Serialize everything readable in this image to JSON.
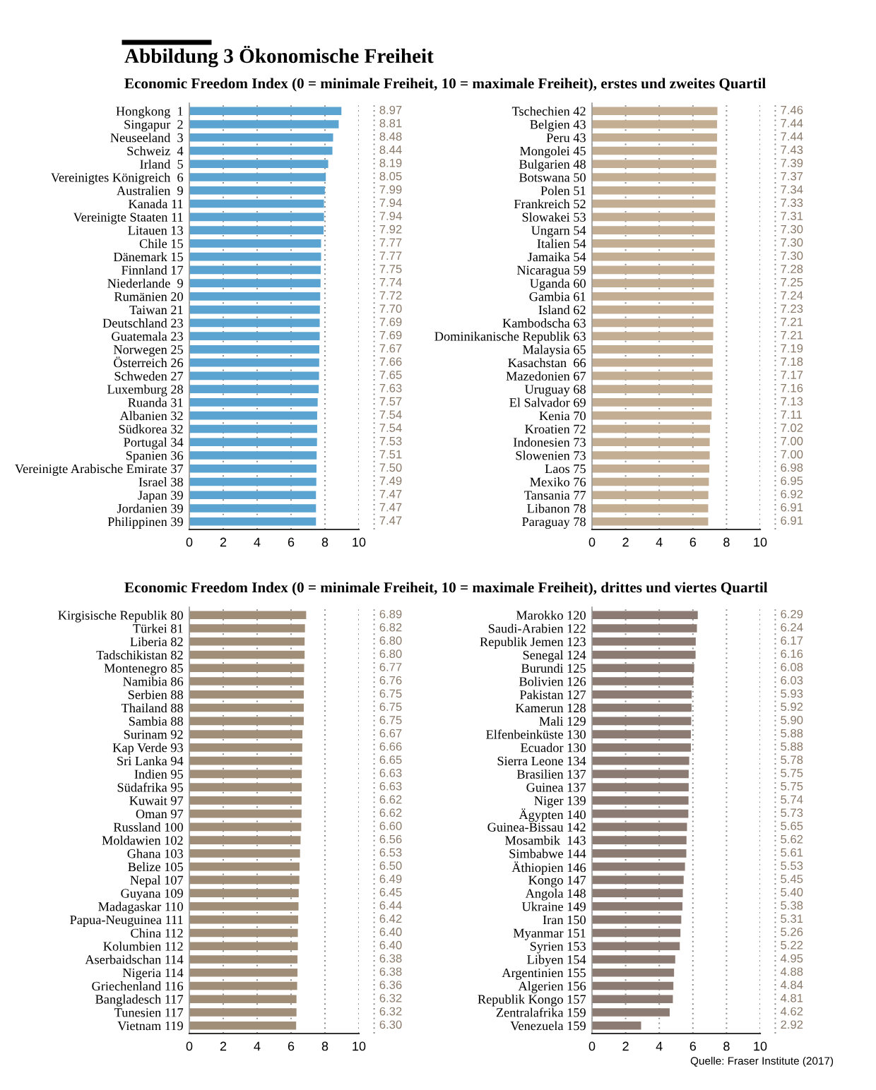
{
  "chart_data": [
    {
      "type": "bar",
      "orientation": "horizontal",
      "title": "Abbildung 3 Ökonomische Freiheit",
      "subtitle": "Economic Freedom Index (0 = minimale Freiheit, 10 = maximale Freiheit), erstes und zweites Quartil",
      "color": "#5ba3d0",
      "xlim": [
        0,
        10
      ],
      "xticks": [
        0,
        2,
        4,
        6,
        8,
        10
      ],
      "grid": "x",
      "legend": false,
      "categories": [
        "Hongkong  1",
        "Singapur  2",
        "Neuseeland  3",
        "Schweiz  4",
        "Irland  5",
        "Vereinigtes Königreich  6",
        "Australien  9",
        "Kanada 11",
        "Vereinigte Staaten 11",
        "Litauen 13",
        "Chile 15",
        "Dänemark 15",
        "Finnland 17",
        "Niederlande  9",
        "Rumänien 20",
        "Taiwan 21",
        "Deutschland 23",
        "Guatemala 23",
        "Norwegen 25",
        "Österreich 26",
        "Schweden 27",
        "Luxemburg 28",
        "Ruanda 31",
        "Albanien 32",
        "Südkorea 32",
        "Portugal 34",
        "Spanien 36",
        "Vereinigte Arabische Emirate 37",
        "Israel 38",
        "Japan 39",
        "Jordanien 39",
        "Philippinen 39"
      ],
      "values": [
        8.97,
        8.81,
        8.48,
        8.44,
        8.19,
        8.05,
        7.99,
        7.94,
        7.94,
        7.92,
        7.77,
        7.77,
        7.75,
        7.74,
        7.72,
        7.7,
        7.69,
        7.69,
        7.67,
        7.66,
        7.65,
        7.63,
        7.57,
        7.54,
        7.54,
        7.53,
        7.51,
        7.5,
        7.49,
        7.47,
        7.47,
        7.47
      ],
      "value_labels": [
        "8.97",
        "8.81",
        "8.48",
        "8.44",
        "8.19",
        "8.05",
        "7.99",
        "7.94",
        "7.94",
        "7.92",
        "7.77",
        "7.77",
        "7.75",
        "7.74",
        "7.72",
        "7.70",
        "7.69",
        "7.69",
        "7.67",
        "7.66",
        "7.65",
        "7.63",
        "7.57",
        "7.54",
        "7.54",
        "7.53",
        "7.51",
        "7.50",
        "7.49",
        "7.47",
        "7.47",
        "7.47"
      ]
    },
    {
      "type": "bar",
      "orientation": "horizontal",
      "color": "#c4ae93",
      "xlim": [
        0,
        10
      ],
      "xticks": [
        0,
        2,
        4,
        6,
        8,
        10
      ],
      "grid": "x",
      "legend": false,
      "categories": [
        "Tschechien 42",
        "Belgien 43",
        "Peru 43",
        "Mongolei 45",
        "Bulgarien 48",
        "Botswana 50",
        "Polen 51",
        "Frankreich 52",
        "Slowakei 53",
        "Ungarn 54",
        "Italien 54",
        "Jamaika 54",
        "Nicaragua 59",
        "Uganda 60",
        "Gambia 61",
        "Island 62",
        "Kambodscha 63",
        "Dominikanische Republik 63",
        "Malaysia 65",
        "Kasachstan  66",
        "Mazedonien 67",
        "Uruguay 68",
        "El Salvador 69",
        "Kenia 70",
        "Kroatien 72",
        "Indonesien 73",
        "Slowenien 73",
        "Laos 75",
        "Mexiko 76",
        "Tansania 77",
        "Libanon 78",
        "Paraguay 78"
      ],
      "values": [
        7.46,
        7.44,
        7.44,
        7.43,
        7.39,
        7.37,
        7.34,
        7.33,
        7.31,
        7.3,
        7.3,
        7.3,
        7.28,
        7.25,
        7.24,
        7.23,
        7.21,
        7.21,
        7.19,
        7.18,
        7.17,
        7.16,
        7.13,
        7.11,
        7.02,
        7.0,
        7.0,
        6.98,
        6.95,
        6.92,
        6.91,
        6.91
      ],
      "value_labels": [
        "7.46",
        "7.44",
        "7.44",
        "7.43",
        "7.39",
        "7.37",
        "7.34",
        "7.33",
        "7.31",
        "7.30",
        "7.30",
        "7.30",
        "7.28",
        "7.25",
        "7.24",
        "7.23",
        "7.21",
        "7.21",
        "7.19",
        "7.18",
        "7.17",
        "7.16",
        "7.13",
        "7.11",
        "7.02",
        "7.00",
        "7.00",
        "6.98",
        "6.95",
        "6.92",
        "6.91",
        "6.91"
      ]
    },
    {
      "type": "bar",
      "orientation": "horizontal",
      "subtitle": "Economic Freedom Index (0 = minimale Freiheit, 10 = maximale Freiheit), drittes und viertes Quartil",
      "color": "#a08e78",
      "xlim": [
        0,
        10
      ],
      "xticks": [
        0,
        2,
        4,
        6,
        8,
        10
      ],
      "grid": "x",
      "legend": false,
      "categories": [
        "Kirgisische Republik 80",
        "Türkei 81",
        "Liberia 82",
        "Tadschikistan 82",
        "Montenegro 85",
        "Namibia 86",
        "Serbien 88",
        "Thailand 88",
        "Sambia 88",
        "Surinam 92",
        "Kap Verde 93",
        "Sri Lanka 94",
        "Indien 95",
        "Südafrika 95",
        "Kuwait 97",
        "Oman 97",
        "Russland 100",
        "Moldawien 102",
        "Ghana 103",
        "Belize 105",
        "Nepal 107",
        "Guyana 109",
        "Madagaskar 110",
        "Papua-Neuguinea 111",
        "China 112",
        "Kolumbien 112",
        "Aserbaidschan 114",
        "Nigeria 114",
        "Griechenland 116",
        "Bangladesch 117",
        "Tunesien 117",
        "Vietnam 119"
      ],
      "values": [
        6.89,
        6.82,
        6.8,
        6.8,
        6.77,
        6.76,
        6.75,
        6.75,
        6.75,
        6.67,
        6.66,
        6.65,
        6.63,
        6.63,
        6.62,
        6.62,
        6.6,
        6.56,
        6.53,
        6.5,
        6.49,
        6.45,
        6.44,
        6.42,
        6.4,
        6.4,
        6.38,
        6.38,
        6.36,
        6.32,
        6.32,
        6.3
      ],
      "value_labels": [
        "6.89",
        "6.82",
        "6.80",
        "6.80",
        "6.77",
        "6.76",
        "6.75",
        "6.75",
        "6.75",
        "6.67",
        "6.66",
        "6.65",
        "6.63",
        "6.63",
        "6.62",
        "6.62",
        "6.60",
        "6.56",
        "6.53",
        "6.50",
        "6.49",
        "6.45",
        "6.44",
        "6.42",
        "6.40",
        "6.40",
        "6.38",
        "6.38",
        "6.36",
        "6.32",
        "6.32",
        "6.30"
      ]
    },
    {
      "type": "bar",
      "orientation": "horizontal",
      "color": "#8c7b72",
      "xlim": [
        0,
        10
      ],
      "xticks": [
        0,
        2,
        4,
        6,
        8,
        10
      ],
      "grid": "x",
      "legend": false,
      "annotations": [
        "Quelle: Fraser Institute (2017)"
      ],
      "categories": [
        "Marokko 120",
        "Saudi-Arabien 122",
        "Republik Jemen 123",
        "Senegal 124",
        "Burundi 125",
        "Bolivien 126",
        "Pakistan 127",
        "Kamerun 128",
        "Mali 129",
        "Elfenbeinküste 130",
        "Ecuador 130",
        "Sierra Leone 134",
        "Brasilien 137",
        "Guinea 137",
        "Niger 139",
        "Ägypten 140",
        "Guinea-Bissau 142",
        "Mosambik  143",
        "Simbabwe 144",
        "Äthiopien 146",
        "Kongo 147",
        "Angola 148",
        "Ukraine 149",
        "Iran 150",
        "Myanmar 151",
        "Syrien 153",
        "Libyen 154",
        "Argentinien 155",
        "Algerien 156",
        "Republik Kongo 157",
        "Zentralafrika 159",
        "Venezuela 159"
      ],
      "values": [
        6.29,
        6.24,
        6.17,
        6.16,
        6.08,
        6.03,
        5.93,
        5.92,
        5.9,
        5.88,
        5.88,
        5.78,
        5.75,
        5.75,
        5.74,
        5.73,
        5.65,
        5.62,
        5.61,
        5.53,
        5.45,
        5.4,
        5.38,
        5.31,
        5.26,
        5.22,
        4.95,
        4.88,
        4.84,
        4.81,
        4.62,
        2.92
      ],
      "value_labels": [
        "6.29",
        "6.24",
        "6.17",
        "6.16",
        "6.08",
        "6.03",
        "5.93",
        "5.92",
        "5.90",
        "5.88",
        "5.88",
        "5.78",
        "5.75",
        "5.75",
        "5.74",
        "5.73",
        "5.65",
        "5.62",
        "5.61",
        "5.53",
        "5.45",
        "5.40",
        "5.38",
        "5.31",
        "5.26",
        "5.22",
        "4.95",
        "4.88",
        "4.84",
        "4.81",
        "4.62",
        "2.92"
      ]
    }
  ]
}
